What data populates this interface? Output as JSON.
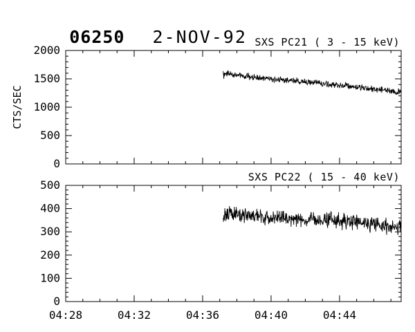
{
  "page": {
    "background": "#ffffff",
    "foreground": "#000000"
  },
  "header": {
    "observation_id": "06250",
    "date": "2-NOV-92"
  },
  "chart_data": [
    {
      "type": "line",
      "title": "SXS PC21 (  3 - 15 keV)",
      "ylabel": "CTS/SEC",
      "xlabel": "",
      "xlim": [
        28,
        47.6
      ],
      "ylim": [
        0,
        2000
      ],
      "yticks": [
        0,
        500,
        1000,
        1500,
        2000
      ],
      "ytick_labels": [
        "0",
        "500",
        "1000",
        "1500",
        "2000"
      ],
      "y_minor_step": 100,
      "xticks": [
        28,
        32,
        36,
        40,
        44
      ],
      "xtick_labels": [
        "04:28",
        "04:32",
        "04:36",
        "04:40",
        "04:44"
      ],
      "x_minor_step": 1,
      "show_x_labels": false,
      "grid": false,
      "legend": "none",
      "series": [
        {
          "name": "SXS PC21 count rate",
          "x_start": 37.2,
          "x_end": 47.6,
          "trend_points": [
            [
              37.2,
              1600
            ],
            [
              39,
              1530
            ],
            [
              40,
              1500
            ],
            [
              42,
              1450
            ],
            [
              44,
              1385
            ],
            [
              46,
              1320
            ],
            [
              47.6,
              1265
            ]
          ],
          "noise_amplitude": 45,
          "color": "#000000"
        }
      ]
    },
    {
      "type": "line",
      "title": "SXS PC22 ( 15 - 40 keV)",
      "ylabel": "",
      "xlabel": "",
      "xlim": [
        28,
        47.6
      ],
      "ylim": [
        0,
        500
      ],
      "yticks": [
        0,
        100,
        200,
        300,
        400,
        500
      ],
      "ytick_labels": [
        "0",
        "100",
        "200",
        "300",
        "400",
        "500"
      ],
      "y_minor_step": 20,
      "xticks": [
        28,
        32,
        36,
        40,
        44
      ],
      "xtick_labels": [
        "04:28",
        "04:32",
        "04:36",
        "04:40",
        "04:44"
      ],
      "x_minor_step": 1,
      "show_x_labels": true,
      "grid": false,
      "legend": "none",
      "series": [
        {
          "name": "SXS PC22 count rate",
          "x_start": 37.2,
          "x_end": 47.6,
          "trend_points": [
            [
              37.2,
              378
            ],
            [
              39,
              368
            ],
            [
              40,
              362
            ],
            [
              42,
              352
            ],
            [
              44,
              345
            ],
            [
              46,
              330
            ],
            [
              47.6,
              318
            ]
          ],
          "noise_amplitude": 28,
          "color": "#000000"
        }
      ]
    }
  ]
}
